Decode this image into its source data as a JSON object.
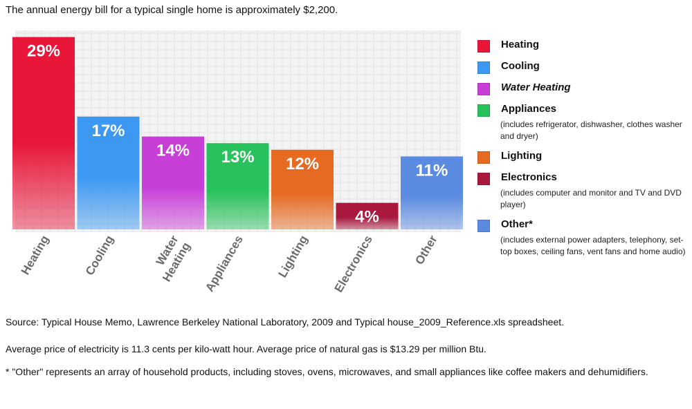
{
  "header": {
    "title": "The annual energy bill for a typical single home is approximately $2,200."
  },
  "chart_data": {
    "type": "bar",
    "categories": [
      "Heating",
      "Cooling",
      "Water Heating",
      "Appliances",
      "Lighting",
      "Electronics",
      "Other"
    ],
    "axis_labels": [
      [
        "Heating"
      ],
      [
        "Cooling"
      ],
      [
        "Water",
        "Heating"
      ],
      [
        "Appliances"
      ],
      [
        "Lighting"
      ],
      [
        "Electronics"
      ],
      [
        "Other"
      ]
    ],
    "values": [
      29,
      17,
      14,
      13,
      12,
      4,
      11
    ],
    "value_labels": [
      "29%",
      "17%",
      "14%",
      "13%",
      "12%",
      "4%",
      "11%"
    ],
    "colors": [
      "#e8173a",
      "#3d98f2",
      "#c83fd8",
      "#27c25b",
      "#e66a22",
      "#a8193d",
      "#5b8be0"
    ],
    "ylim": [
      0,
      30
    ],
    "grid": true,
    "legend_position": "right"
  },
  "legend": {
    "items": [
      {
        "label": "Heating",
        "color": "#e8173a",
        "note": ""
      },
      {
        "label": "Cooling",
        "color": "#3d98f2",
        "note": ""
      },
      {
        "label": "Water Heating",
        "color": "#c83fd8",
        "note": ""
      },
      {
        "label": "Appliances",
        "color": "#27c25b",
        "note": "(includes refrigerator, dishwasher, clothes washer and dryer)"
      },
      {
        "label": "Lighting",
        "color": "#e66a22",
        "note": ""
      },
      {
        "label": "Electronics",
        "color": "#a8193d",
        "note": "(includes computer and monitor and TV and DVD player)"
      },
      {
        "label": "Other*",
        "color": "#5b8be0",
        "note": "(includes external power adapters, telephony, set-top boxes, ceiling fans, vent fans and home audio)"
      }
    ]
  },
  "footer": {
    "source": "Source: Typical House Memo, Lawrence Berkeley National Laboratory, 2009 and Typical house_2009_Reference.xls spreadsheet.",
    "prices": "Average price of electricity is 11.3 cents per kilo-watt hour. Average price of natural gas is $13.29 per million Btu.",
    "footnote": "* \"Other\" represents an array of household products, including stoves, ovens, microwaves, and small appliances like coffee makers and dehumidifiers."
  }
}
